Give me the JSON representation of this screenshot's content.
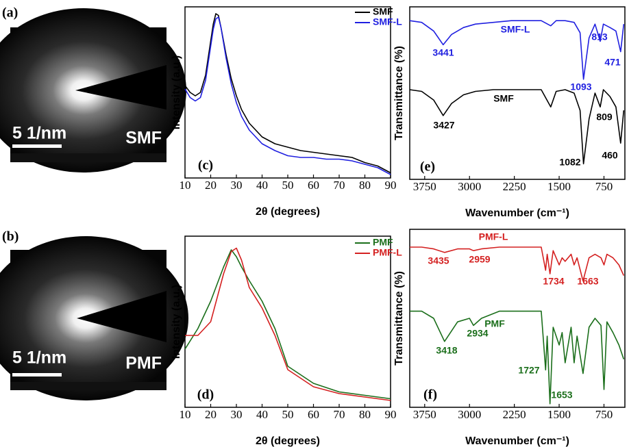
{
  "images": [
    {
      "label": "(a)",
      "scale": "5 1/nm",
      "name": "SMF"
    },
    {
      "label": "(b)",
      "scale": "5 1/nm",
      "name": "PMF"
    }
  ],
  "chart_data": [
    {
      "type": "line",
      "xlabel": "2θ (degrees)",
      "ylabel": "Intensity (a.u.)",
      "panel_label": "(c)",
      "x": [
        10,
        12,
        14,
        16,
        18,
        20,
        21,
        22,
        23,
        24,
        26,
        28,
        30,
        32,
        35,
        40,
        45,
        50,
        55,
        60,
        65,
        70,
        75,
        80,
        85,
        90
      ],
      "series": [
        {
          "name": "SMF",
          "color": "#000000",
          "values": [
            54,
            50,
            48,
            50,
            60,
            80,
            90,
            96,
            95,
            88,
            72,
            58,
            48,
            40,
            32,
            24,
            20,
            18,
            16,
            15,
            14,
            13,
            12,
            9,
            7,
            3
          ]
        },
        {
          "name": "SMF-L",
          "color": "#1f1fe0",
          "values": [
            52,
            47,
            45,
            47,
            57,
            77,
            87,
            93,
            94,
            88,
            70,
            55,
            44,
            36,
            28,
            20,
            16,
            13,
            12,
            12,
            11,
            11,
            10,
            8,
            6,
            2
          ]
        }
      ],
      "xlim": [
        10,
        90
      ],
      "ylim": [
        0,
        100
      ],
      "xticks": [
        10,
        20,
        30,
        40,
        50,
        60,
        70,
        80,
        90
      ],
      "legend": "upper right"
    },
    {
      "type": "line",
      "xlabel": "2θ (degrees)",
      "ylabel": "Intensity (a.u.)",
      "panel_label": "(d)",
      "x": [
        10,
        15,
        20,
        25,
        28,
        30,
        32,
        35,
        40,
        45,
        50,
        60,
        70,
        80,
        90
      ],
      "series": [
        {
          "name": "PMF",
          "color": "#1a6e1a",
          "values": [
            34,
            46,
            62,
            82,
            92,
            88,
            82,
            74,
            62,
            46,
            24,
            14,
            9,
            7,
            5
          ]
        },
        {
          "name": "PMF-L",
          "color": "#d42020",
          "values": [
            42,
            42,
            50,
            78,
            91,
            93,
            86,
            70,
            58,
            42,
            22,
            12,
            8,
            6,
            4
          ]
        }
      ],
      "xlim": [
        10,
        90
      ],
      "ylim": [
        0,
        100
      ],
      "xticks": [
        10,
        20,
        30,
        40,
        50,
        60,
        70,
        80,
        90
      ],
      "legend": "upper right"
    },
    {
      "type": "line",
      "xlabel": "Wavenumber (cm⁻¹)",
      "ylabel": "Transmittance (%)",
      "panel_label": "(e)",
      "x": [
        4000,
        3800,
        3600,
        3441,
        3300,
        3100,
        2900,
        2600,
        2300,
        2000,
        1800,
        1640,
        1550,
        1400,
        1250,
        1150,
        1093,
        1000,
        900,
        813,
        760,
        650,
        550,
        471,
        420
      ],
      "series": [
        {
          "name": "SMF-L",
          "color": "#1f1fe0",
          "values": [
            92,
            91,
            86,
            78,
            84,
            88,
            90,
            91,
            92,
            92,
            92,
            89,
            92,
            92,
            91,
            85,
            58,
            82,
            90,
            80,
            90,
            88,
            86,
            74,
            90
          ]
        },
        {
          "name": "SMF",
          "color": "#000000",
          "values": [
            52,
            51,
            46,
            37,
            44,
            49,
            51,
            52,
            52,
            52,
            52,
            42,
            51,
            52,
            50,
            40,
            9,
            35,
            50,
            42,
            52,
            48,
            42,
            21,
            40
          ]
        }
      ],
      "annotations": [
        "3441",
        "1093",
        "813",
        "471",
        "3427",
        "1082",
        "809",
        "460"
      ],
      "xlim": [
        4000,
        400
      ],
      "ylim": [
        0,
        100
      ],
      "xticks": [
        3750,
        3000,
        2250,
        1500,
        750
      ]
    },
    {
      "type": "line",
      "xlabel": "Wavenumber (cm⁻¹)",
      "ylabel": "Transmittance (%)",
      "panel_label": "(f)",
      "x": [
        4000,
        3800,
        3600,
        3418,
        3200,
        3000,
        2934,
        2800,
        2500,
        2200,
        2000,
        1800,
        1727,
        1700,
        1653,
        1600,
        1500,
        1450,
        1400,
        1300,
        1250,
        1200,
        1100,
        1000,
        900,
        800,
        750,
        700,
        600,
        500,
        420
      ],
      "series": [
        {
          "name": "PMF-L",
          "color": "#d42020",
          "values": [
            90,
            90,
            89,
            87,
            89,
            89,
            88,
            89,
            90,
            90,
            90,
            90,
            77,
            86,
            75,
            88,
            80,
            84,
            82,
            86,
            80,
            84,
            71,
            84,
            86,
            84,
            80,
            86,
            84,
            80,
            74
          ]
        },
        {
          "name": "PMF",
          "color": "#1a6e1a",
          "values": [
            54,
            54,
            50,
            37,
            48,
            50,
            46,
            50,
            54,
            54,
            54,
            54,
            21,
            40,
            2,
            45,
            35,
            42,
            25,
            45,
            25,
            40,
            19,
            45,
            50,
            46,
            10,
            48,
            42,
            35,
            27
          ]
        }
      ],
      "annotations": [
        "3435",
        "2959",
        "1734",
        "1663",
        "3418",
        "2934",
        "1727",
        "1653"
      ],
      "xlim": [
        4000,
        400
      ],
      "ylim": [
        0,
        100
      ],
      "xticks": [
        3750,
        3000,
        2250,
        1500,
        750
      ]
    }
  ]
}
